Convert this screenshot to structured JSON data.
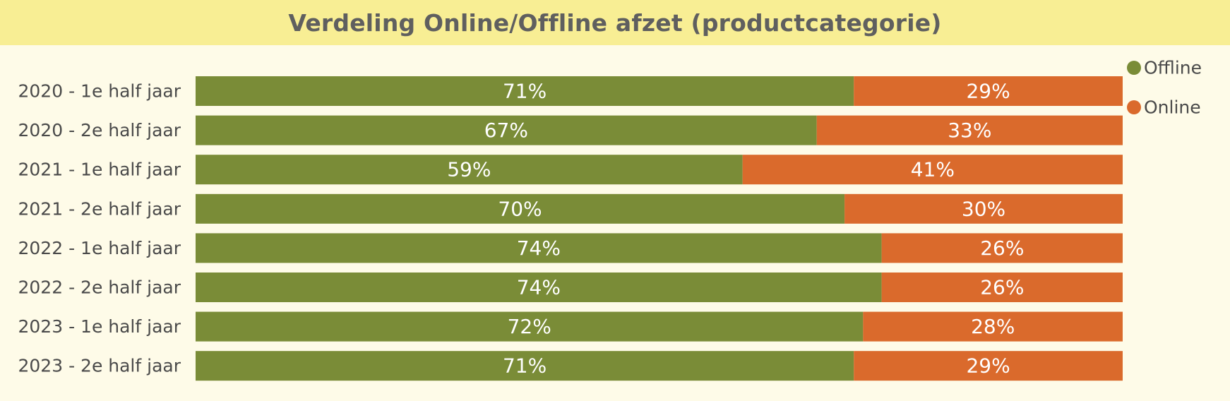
{
  "title": "Verdeling Online/Offline afzet (productcategorie)",
  "colors": {
    "Offline": "#7a8c37",
    "Online": "#da6a2c",
    "title_background": "#f8ee94",
    "panel_background": "#fefbe8"
  },
  "chart_data": {
    "type": "bar",
    "orientation": "horizontal",
    "stacked": "100%",
    "title": "Verdeling Online/Offline afzet (productcategorie)",
    "categories": [
      "2020 - 1e half jaar",
      "2020 - 2e half jaar",
      "2021 - 1e half jaar",
      "2021 - 2e half jaar",
      "2022 - 1e half jaar",
      "2022 - 2e half jaar",
      "2023 - 1e half jaar",
      "2023 - 2e half jaar"
    ],
    "series": [
      {
        "name": "Offline",
        "values": [
          71,
          67,
          59,
          70,
          74,
          74,
          72,
          71
        ]
      },
      {
        "name": "Online",
        "values": [
          29,
          33,
          41,
          30,
          26,
          26,
          28,
          29
        ]
      }
    ],
    "value_unit": "%",
    "xlim": [
      0,
      100
    ],
    "grid": false,
    "legend": {
      "position": "top-right",
      "entries": [
        "Offline",
        "Online"
      ]
    }
  }
}
